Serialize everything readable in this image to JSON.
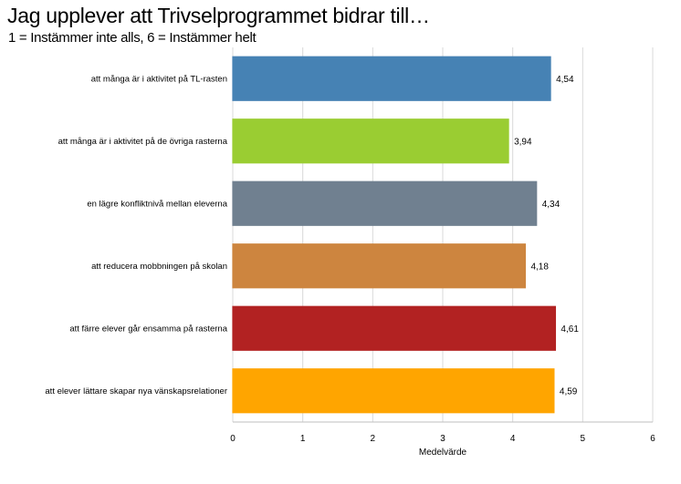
{
  "title": "Jag upplever att Trivselprogrammet bidrar till…",
  "subtitle": "1 = Instämmer inte alls, 6 = Instämmer helt",
  "chart_data": {
    "type": "bar",
    "orientation": "horizontal",
    "categories": [
      "att många är i aktivitet på TL-rasten",
      "att många är i aktivitet på de övriga rasterna",
      "en lägre konfliktnivå mellan eleverna",
      "att reducera mobbningen på skolan",
      "att färre elever går ensamma på rasterna",
      "att elever lättare skapar nya vänskapsrelationer"
    ],
    "values": [
      4.54,
      3.94,
      4.34,
      4.18,
      4.61,
      4.59
    ],
    "value_labels": [
      "4,54",
      "3,94",
      "4,34",
      "4,18",
      "4,61",
      "4,59"
    ],
    "colors": [
      "#4682B4",
      "#9ACD32",
      "#708090",
      "#CD853F",
      "#B22222",
      "#FFA500"
    ],
    "xlabel": "Medelvärde",
    "xlim": [
      0,
      6
    ],
    "xticks": [
      "0",
      "1",
      "2",
      "3",
      "4",
      "5",
      "6"
    ],
    "grid": "vertical"
  }
}
